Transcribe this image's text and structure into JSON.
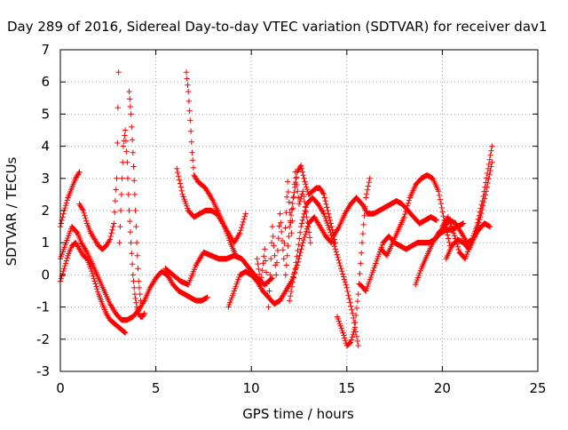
{
  "chart_data": {
    "type": "scatter",
    "title": "Day 289 of 2016, Sidereal Day-to-day VTEC variation (SDTVAR) for receiver dav1",
    "xlabel": "GPS time / hours",
    "ylabel": "SDTVAR / TECUs",
    "xlim": [
      0,
      25
    ],
    "ylim": [
      -3,
      7
    ],
    "xticks": [
      "0",
      "5",
      "10",
      "15",
      "20",
      "25"
    ],
    "yticks": [
      "-3",
      "-2",
      "-1",
      "0",
      "1",
      "2",
      "3",
      "4",
      "5",
      "6",
      "7"
    ],
    "grid": true,
    "marker": "+",
    "color": "#ff0000",
    "series": [
      {
        "x": [
          0.0,
          0.3,
          0.6,
          0.9,
          1.1,
          1.4,
          1.7,
          2.0,
          2.3,
          2.6,
          2.9,
          3.2,
          3.5,
          3.8,
          4.1,
          4.4,
          4.7,
          5.0,
          5.3,
          5.6,
          5.9,
          6.2,
          6.5,
          6.8,
          7.1,
          7.4,
          7.7
        ],
        "y": [
          0.5,
          1.0,
          1.5,
          1.3,
          1.0,
          0.7,
          0.3,
          -0.1,
          -0.5,
          -0.9,
          -1.2,
          -1.4,
          -1.4,
          -1.3,
          -1.1,
          -0.8,
          -0.4,
          -0.1,
          0.1,
          0.0,
          -0.3,
          -0.5,
          -0.6,
          -0.7,
          -0.8,
          -0.8,
          -0.7
        ]
      },
      {
        "x": [
          0.0,
          0.2,
          0.4,
          0.6,
          0.8,
          1.0
        ],
        "y": [
          1.5,
          2.0,
          2.4,
          2.7,
          3.0,
          3.2
        ]
      },
      {
        "x": [
          0.0,
          0.2,
          0.4,
          0.6,
          0.8,
          1.0,
          1.2,
          1.4,
          1.6,
          1.8,
          2.0,
          2.2,
          2.4,
          2.6,
          2.8,
          3.0,
          3.2,
          3.4
        ],
        "y": [
          -0.2,
          0.2,
          0.6,
          0.9,
          1.0,
          0.8,
          0.6,
          0.5,
          0.2,
          -0.2,
          -0.6,
          -0.9,
          -1.2,
          -1.4,
          -1.5,
          -1.6,
          -1.7,
          -1.8
        ]
      },
      {
        "x": [
          1.0,
          1.2,
          1.4,
          1.6,
          1.8,
          2.0,
          2.2,
          2.4,
          2.6,
          2.8,
          2.95,
          3.05
        ],
        "y": [
          2.2,
          2.0,
          1.6,
          1.3,
          1.1,
          0.9,
          0.8,
          0.9,
          1.1,
          1.6,
          3.0,
          6.3
        ]
      },
      {
        "x": [
          3.1,
          3.2,
          3.3,
          3.4,
          3.5,
          3.6,
          3.7,
          3.8,
          3.9,
          4.0,
          4.1,
          4.2,
          4.3,
          4.4
        ],
        "y": [
          1.0,
          2.5,
          4.0,
          4.5,
          3.5,
          2.0,
          1.0,
          0.0,
          -0.6,
          -1.0,
          -1.2,
          -1.3,
          -1.3,
          -1.2
        ]
      },
      {
        "x": [
          3.6,
          3.7,
          3.8,
          3.9,
          4.0,
          4.1,
          4.2
        ],
        "y": [
          5.7,
          5.0,
          3.8,
          2.5,
          1.0,
          -0.2,
          -0.8
        ]
      },
      {
        "x": [
          6.6,
          6.7,
          6.8,
          6.9,
          7.0,
          7.2,
          7.4,
          7.6,
          7.8,
          8.0,
          8.3,
          8.6,
          8.9,
          9.2
        ],
        "y": [
          6.3,
          5.7,
          4.8,
          3.8,
          3.1,
          2.9,
          2.8,
          2.7,
          2.5,
          2.3,
          1.9,
          1.5,
          1.0,
          0.6
        ]
      },
      {
        "x": [
          6.1,
          6.4,
          6.7,
          7.0,
          7.3,
          7.6,
          7.9,
          8.2,
          8.5,
          8.8,
          9.1,
          9.4,
          9.7
        ],
        "y": [
          3.3,
          2.5,
          2.0,
          1.8,
          1.9,
          2.0,
          2.0,
          1.9,
          1.6,
          1.3,
          1.0,
          1.3,
          1.9
        ]
      },
      {
        "x": [
          5.5,
          5.9,
          6.3,
          6.7,
          7.1,
          7.5,
          7.9,
          8.3,
          8.7,
          9.1,
          9.5,
          9.9,
          10.3,
          10.7,
          11.1
        ],
        "y": [
          0.2,
          0.0,
          -0.2,
          -0.3,
          0.3,
          0.7,
          0.6,
          0.5,
          0.5,
          0.6,
          0.5,
          0.2,
          -0.1,
          -0.3,
          -0.1
        ]
      },
      {
        "x": [
          8.8,
          9.1,
          9.4,
          9.7,
          10.0,
          10.3,
          10.6,
          10.9,
          11.2,
          11.5,
          11.8,
          12.1,
          12.4,
          12.7,
          13.0,
          13.3,
          13.6,
          13.9,
          14.2
        ],
        "y": [
          -1.0,
          -0.5,
          0.0,
          0.1,
          0.0,
          -0.2,
          -0.5,
          -0.7,
          -0.9,
          -0.8,
          -0.5,
          -0.2,
          0.3,
          1.0,
          1.6,
          1.8,
          1.5,
          1.2,
          1.0
        ]
      },
      {
        "x": [
          10.3,
          10.5,
          10.7,
          10.9,
          11.1,
          11.3,
          11.5,
          11.7,
          11.9,
          12.1,
          12.3,
          12.5,
          12.7,
          12.9,
          13.1
        ],
        "y": [
          0.5,
          -0.3,
          0.8,
          -1.0,
          1.5,
          0.0,
          1.9,
          0.5,
          2.9,
          1.3,
          3.2,
          2.2,
          2.6,
          1.8,
          1.0
        ]
      },
      {
        "x": [
          11.8,
          12.0,
          12.2,
          12.4,
          12.6,
          12.8,
          13.0,
          13.2,
          13.4,
          13.6,
          13.8,
          14.0,
          14.2,
          14.4
        ],
        "y": [
          0.0,
          1.5,
          2.4,
          3.2,
          3.4,
          2.9,
          2.5,
          2.6,
          2.7,
          2.7,
          2.5,
          2.0,
          1.5,
          1.0
        ]
      },
      {
        "x": [
          12.0,
          12.3,
          12.6,
          12.9,
          13.2,
          13.5,
          13.8,
          14.1,
          14.4,
          14.7,
          15.0,
          15.3,
          15.6
        ],
        "y": [
          -0.8,
          0.2,
          1.5,
          2.2,
          2.4,
          2.2,
          1.9,
          1.4,
          0.8,
          0.2,
          -0.4,
          -1.2,
          -2.2
        ]
      },
      {
        "x": [
          14.5,
          14.8,
          15.0,
          15.2,
          15.4,
          15.6,
          15.8,
          16.0,
          16.2
        ],
        "y": [
          -1.3,
          -1.8,
          -2.2,
          -2.1,
          -1.7,
          -0.6,
          1.0,
          2.4,
          3.0
        ]
      },
      {
        "x": [
          14.3,
          14.6,
          14.9,
          15.2,
          15.5,
          15.8,
          16.1,
          16.4,
          16.7,
          17.0,
          17.3,
          17.6,
          17.9,
          18.2,
          18.5,
          18.8,
          19.1,
          19.4,
          19.7
        ],
        "y": [
          1.2,
          1.5,
          1.9,
          2.2,
          2.4,
          2.2,
          1.9,
          1.9,
          2.0,
          2.1,
          2.2,
          2.3,
          2.2,
          2.0,
          1.8,
          1.6,
          1.7,
          1.8,
          1.7
        ]
      },
      {
        "x": [
          15.7,
          16.0,
          16.3,
          16.6,
          16.9,
          17.2,
          17.5,
          17.8,
          18.1,
          18.4,
          18.7,
          19.0,
          19.3,
          19.6,
          19.9,
          20.2,
          20.5,
          20.8,
          21.1
        ],
        "y": [
          -0.3,
          -0.5,
          0.0,
          0.5,
          1.0,
          1.2,
          1.0,
          0.9,
          0.8,
          0.9,
          1.0,
          1.0,
          1.0,
          1.1,
          1.3,
          1.4,
          1.4,
          1.5,
          1.6
        ]
      },
      {
        "x": [
          18.6,
          18.9,
          19.2,
          19.5,
          19.8,
          20.1,
          20.4,
          20.7,
          21.0,
          21.3,
          21.6,
          21.9,
          22.2,
          22.5
        ],
        "y": [
          -0.3,
          0.2,
          0.6,
          1.0,
          1.3,
          1.5,
          1.7,
          1.6,
          1.3,
          1.0,
          1.1,
          1.4,
          1.6,
          1.5
        ]
      },
      {
        "x": [
          16.8,
          17.1,
          17.4,
          17.7,
          18.0,
          18.3,
          18.6,
          18.9,
          19.2,
          19.5,
          19.8,
          20.1,
          20.4
        ],
        "y": [
          0.8,
          0.6,
          1.0,
          1.4,
          1.8,
          2.4,
          2.8,
          3.0,
          3.1,
          3.0,
          2.6,
          1.7,
          0.9
        ]
      },
      {
        "x": [
          20.0,
          20.3,
          20.6,
          20.9,
          21.2,
          21.5,
          21.8,
          22.1,
          22.4,
          22.6
        ],
        "y": [
          1.5,
          1.8,
          1.3,
          0.7,
          0.5,
          1.0,
          1.5,
          2.3,
          3.3,
          4.0
        ]
      },
      {
        "x": [
          20.2,
          20.5,
          20.8,
          21.1,
          21.4,
          21.7,
          22.0,
          22.3,
          22.6
        ],
        "y": [
          0.5,
          0.9,
          1.1,
          1.0,
          0.8,
          1.2,
          1.8,
          2.6,
          3.5
        ]
      }
    ]
  }
}
